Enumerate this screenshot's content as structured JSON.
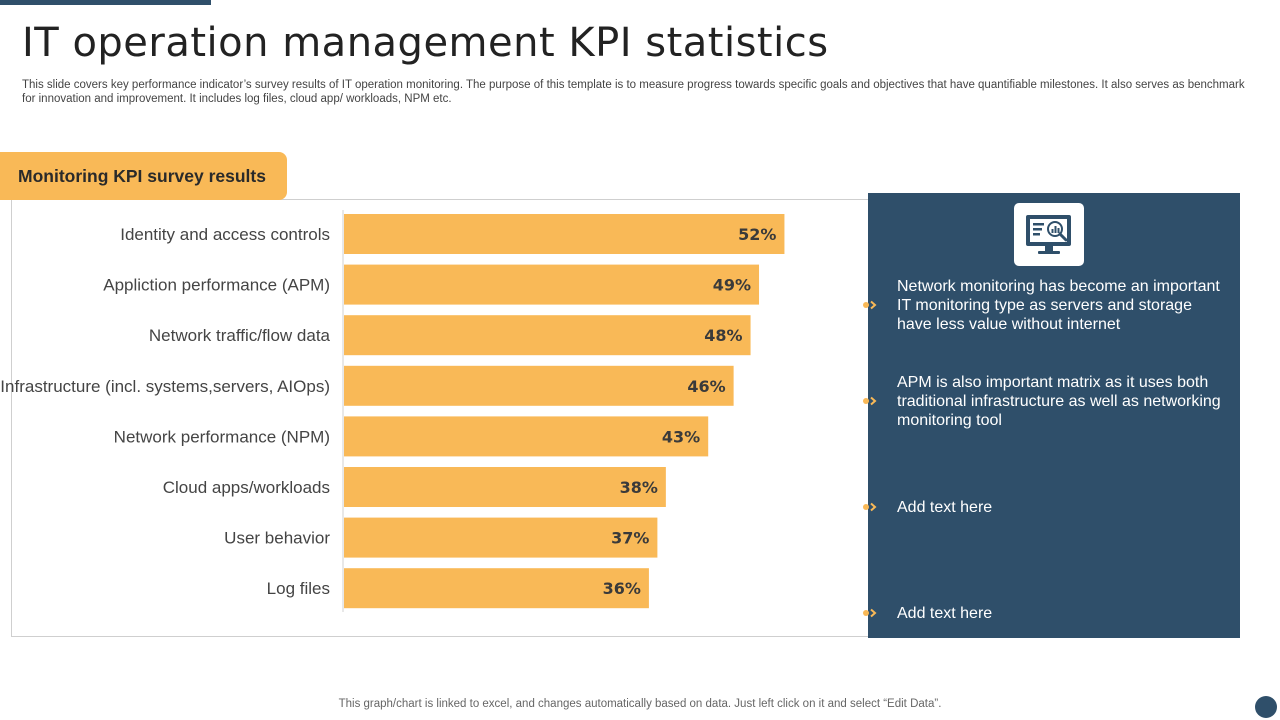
{
  "page": {
    "title": "IT operation management KPI statistics",
    "subtitle": "This slide covers key performance indicator’s survey results of IT operation monitoring. The purpose of this template is to measure progress towards specific goals and objectives that have quantifiable milestones. It also serves as benchmark for innovation and improvement. It includes log files, cloud app/ workloads, NPM etc.",
    "footer": "This graph/chart is linked to excel,  and changes automatically based on data. Just left click on it and select “Edit Data”."
  },
  "tab": {
    "label": "Monitoring KPI survey results"
  },
  "chart_data": {
    "type": "bar",
    "orientation": "horizontal",
    "title": "Monitoring KPI survey results",
    "categories": [
      "Identity and access controls",
      "Appliction performance (APM)",
      "Network traffic/flow data",
      "Infrastructure (incl. systems,servers, AIOps)",
      "Network performance (NPM)",
      "Cloud apps/workloads",
      "User behavior",
      "Log files"
    ],
    "values": [
      52,
      49,
      48,
      46,
      43,
      38,
      37,
      36
    ],
    "labels": [
      "52%",
      "49%",
      "48%",
      "46%",
      "43%",
      "38%",
      "37%",
      "36%"
    ],
    "unit": "%",
    "xlim": [
      0,
      100
    ],
    "xlabel": "",
    "ylabel": "",
    "grid": false,
    "bar_color": "#f9b957"
  },
  "panel": {
    "icon": "monitor-analytics-icon",
    "items": [
      {
        "text": "Network monitoring has become an important IT monitoring type as servers and storage have less value without internet"
      },
      {
        "text": "APM is also important matrix as it uses both traditional infrastructure  as well as networking monitoring tool"
      },
      {
        "text": "Add text here"
      },
      {
        "text": "Add text here"
      }
    ]
  },
  "colors": {
    "accent": "#f9b957",
    "panel": "#2f4f6a",
    "text": "#333333"
  }
}
